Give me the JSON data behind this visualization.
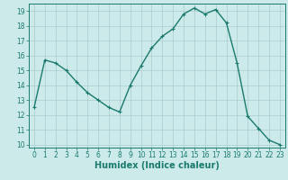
{
  "x": [
    0,
    1,
    2,
    3,
    4,
    5,
    6,
    7,
    8,
    9,
    10,
    11,
    12,
    13,
    14,
    15,
    16,
    17,
    18,
    19,
    20,
    21,
    22,
    23
  ],
  "y": [
    12.5,
    15.7,
    15.5,
    15.0,
    14.2,
    13.5,
    13.0,
    12.5,
    12.2,
    14.0,
    15.3,
    16.5,
    17.3,
    17.8,
    18.8,
    19.2,
    18.8,
    19.1,
    18.2,
    15.5,
    11.9,
    11.1,
    10.3,
    10.0
  ],
  "line_color": "#1a7a6e",
  "marker": "+",
  "marker_size": 3,
  "bg_color": "#cceaea",
  "grid_color": "#aacccc",
  "xlabel": "Humidex (Indice chaleur)",
  "ylim": [
    9.8,
    19.5
  ],
  "xlim": [
    -0.5,
    23.5
  ],
  "yticks": [
    10,
    11,
    12,
    13,
    14,
    15,
    16,
    17,
    18,
    19
  ],
  "xticks": [
    0,
    1,
    2,
    3,
    4,
    5,
    6,
    7,
    8,
    9,
    10,
    11,
    12,
    13,
    14,
    15,
    16,
    17,
    18,
    19,
    20,
    21,
    22,
    23
  ],
  "tick_labelsize": 5.5,
  "xlabel_fontsize": 7,
  "line_width": 1.0,
  "marker_edge_width": 0.8
}
